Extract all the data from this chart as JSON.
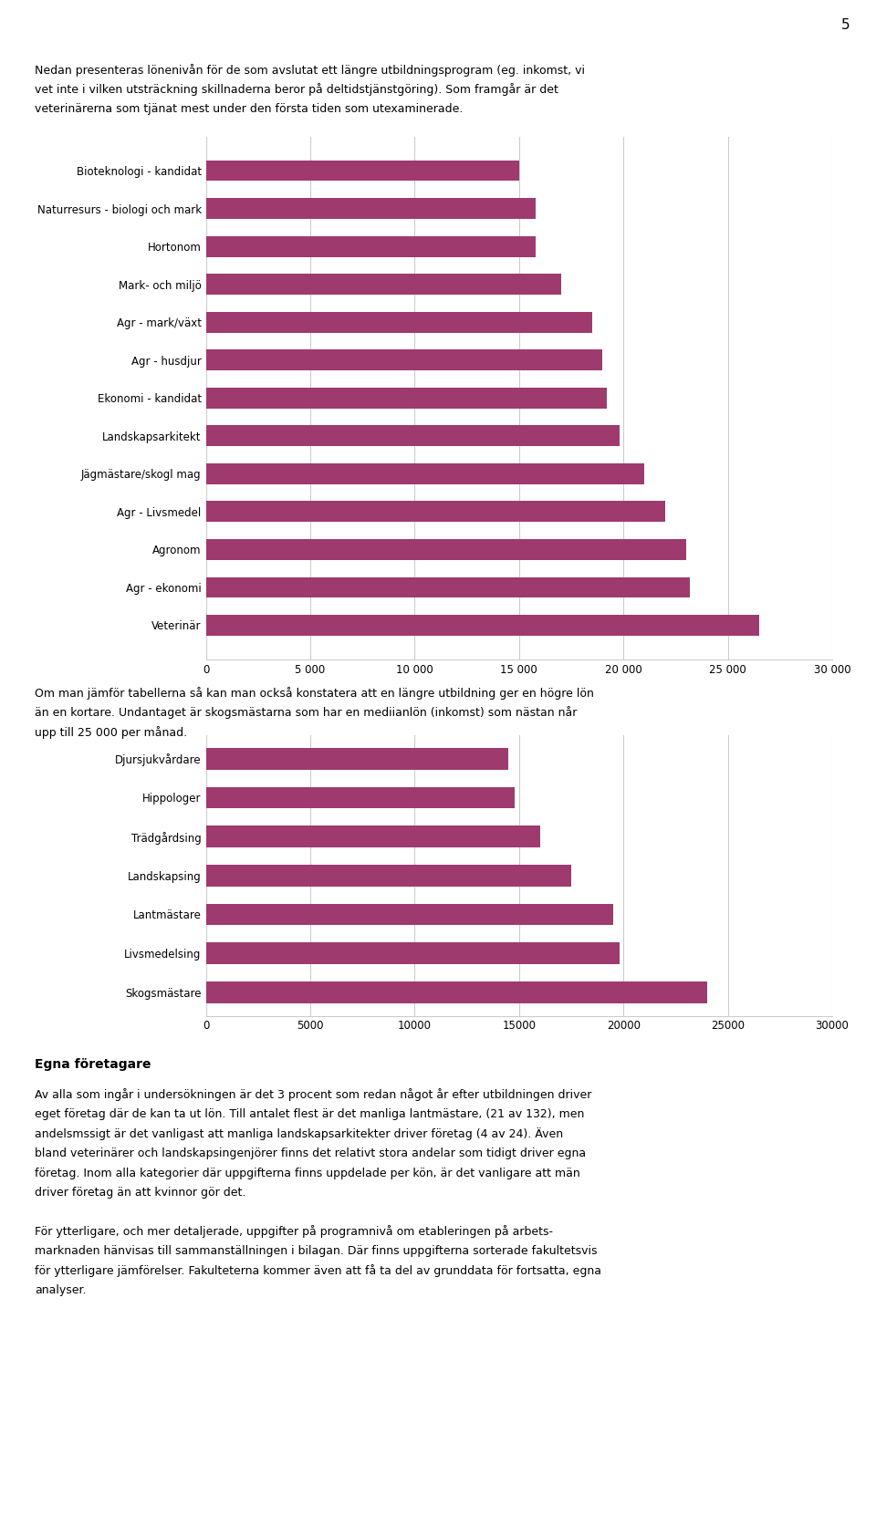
{
  "page_number": "5",
  "intro_line1": "Nedan presenteras lönenivån för de som avslutat ett längre utbildningsprogram (eg. inkomst, vi",
  "intro_line2": "vet inte i vilken utsträckning skillnaderna beror på deltidstjänstgöring). Som framgår är det",
  "intro_line3": "veterinärerna som tjänat mest under den första tiden som utexaminerade.",
  "chart1_categories": [
    "Bioteknologi - kandidat",
    "Naturresurs - biologi och mark",
    "Hortonom",
    "Mark- och miljö",
    "Agr - mark/växt",
    "Agr - husdjur",
    "Ekonomi - kandidat",
    "Landskapsarkitekt",
    "Jägmästare/skogl mag",
    "Agr - Livsmedel",
    "Agronom",
    "Agr - ekonomi",
    "Veterinär"
  ],
  "chart1_values": [
    15000,
    15800,
    15800,
    17000,
    18500,
    19000,
    19200,
    19800,
    21000,
    22000,
    23000,
    23200,
    26500
  ],
  "chart1_xlim": [
    0,
    30000
  ],
  "chart1_xticks": [
    0,
    5000,
    10000,
    15000,
    20000,
    25000,
    30000
  ],
  "chart1_xtick_labels": [
    "0",
    "5 000",
    "10 000",
    "15 000",
    "20 000",
    "25 000",
    "30 000"
  ],
  "chart2_categories": [
    "Djursjukvårdare",
    "Hippologer",
    "Trädgårdsing",
    "Landskapsing",
    "Lantmästare",
    "Livsmedelsing",
    "Skogsmästare"
  ],
  "chart2_values": [
    14500,
    14800,
    16000,
    17500,
    19500,
    19800,
    24000
  ],
  "chart2_xlim": [
    0,
    30000
  ],
  "chart2_xticks": [
    0,
    5000,
    10000,
    15000,
    20000,
    25000,
    30000
  ],
  "chart2_xtick_labels": [
    "0",
    "5000",
    "10000",
    "15000",
    "20000",
    "25000",
    "30000"
  ],
  "bar_color": "#9e3a6e",
  "mid_text_line1": "Om man jämför tabellerna så kan man också konstatera att en längre utbildning ger en högre lön",
  "mid_text_line2": "än en kortare. Undantaget är skogsmästarna som har en mediianlön (inkomst) som nästan når",
  "mid_text_line3": "upp till 25 000 per månad.",
  "section_title": "Egna företagare",
  "bt1_line1": "Av alla som ingår i undersökningen är det 3 procent som redan något år efter utbildningen driver",
  "bt1_line2": "eget företag där de kan ta ut lön. Till antalet flest är det manliga lantmästare, (21 av 132), men",
  "bt1_line3": "andelsmssigt är det vanligast att manliga landskapsarkitekter driver företag (4 av 24). Även",
  "bt1_line4": "bland veterinärer och landskapsingenjörer finns det relativt stora andelar som tidigt driver egna",
  "bt1_line5": "företag. Inom alla kategorier där uppgifterna finns uppdelade per kön, är det vanligare att män",
  "bt1_line6": "driver företag än att kvinnor gör det.",
  "bt2_line1": "För ytterligare, och mer detaljerade, uppgifter på programnivå om etableringen på arbets-",
  "bt2_line2": "marknaden hänvisas till sammanställningen i bilagan. Där finns uppgifterna sorterade fakultetsvis",
  "bt2_line3": "för ytterligare jämförelser. Fakulteterna kommer även att få ta del av grunddata för fortsatta, egna",
  "bt2_line4": "analyser.",
  "background_color": "#ffffff",
  "text_color": "#000000",
  "grid_color": "#cccccc"
}
